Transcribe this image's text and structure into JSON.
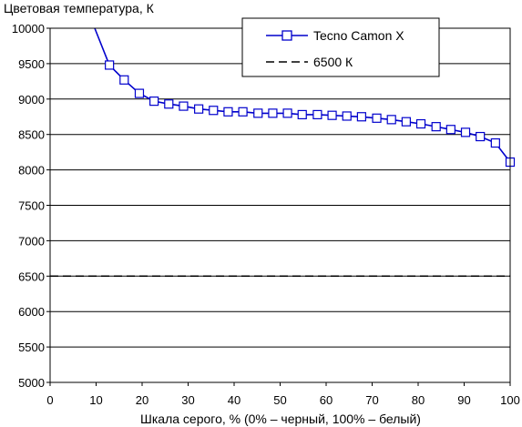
{
  "chart_data": {
    "type": "line",
    "title": "",
    "ylabel": "Цветовая температура, К",
    "xlabel": "Шкала серого, % (0% – черный, 100% – белый)",
    "xlim": [
      0,
      100
    ],
    "ylim": [
      5000,
      10000
    ],
    "xticks": [
      "0",
      "10",
      "20",
      "30",
      "40",
      "50",
      "60",
      "70",
      "80",
      "90",
      "100"
    ],
    "yticks": [
      "5000",
      "5500",
      "6000",
      "6500",
      "7000",
      "7500",
      "8000",
      "8500",
      "9000",
      "9500",
      "10000"
    ],
    "grid": "horizontal",
    "legend_position": "top-right",
    "series": [
      {
        "name": "Tecno Camon X",
        "color": "#0000cc",
        "marker": "open-square",
        "x": [
          9.7,
          12.9,
          16.1,
          19.4,
          22.6,
          25.8,
          29.0,
          32.3,
          35.5,
          38.7,
          41.9,
          45.2,
          48.4,
          51.6,
          54.8,
          58.1,
          61.3,
          64.5,
          67.7,
          71.0,
          74.2,
          77.4,
          80.6,
          83.9,
          87.1,
          90.3,
          93.5,
          96.8,
          100
        ],
        "y": [
          10000,
          9480,
          9270,
          9080,
          8970,
          8930,
          8900,
          8860,
          8840,
          8820,
          8820,
          8800,
          8800,
          8800,
          8780,
          8780,
          8770,
          8760,
          8750,
          8730,
          8710,
          8680,
          8650,
          8610,
          8570,
          8530,
          8470,
          8380,
          8110
        ],
        "markers_from_index": 1
      },
      {
        "name": "6500 К",
        "color": "#000000",
        "style": "dashed",
        "x": [
          0,
          100
        ],
        "y": [
          6500,
          6500
        ]
      }
    ]
  }
}
